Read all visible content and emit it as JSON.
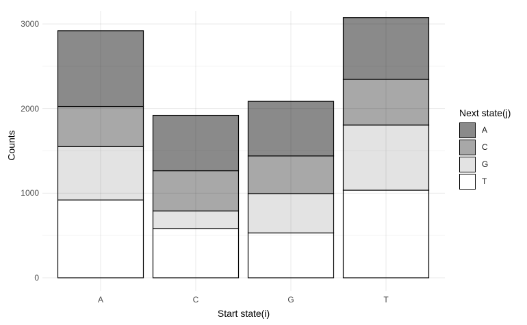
{
  "chart_data": {
    "type": "bar",
    "stacked": true,
    "title": "",
    "xlabel": "Start state(i)",
    "ylabel": "Counts",
    "categories": [
      "A",
      "C",
      "G",
      "T"
    ],
    "series": [
      {
        "name": "A",
        "color": "#8a8a8a",
        "values": [
          895,
          655,
          645,
          730
        ]
      },
      {
        "name": "C",
        "color": "#a8a8a8",
        "values": [
          475,
          475,
          445,
          540
        ]
      },
      {
        "name": "G",
        "color": "#e3e3e3",
        "values": [
          630,
          210,
          465,
          770
        ]
      },
      {
        "name": "T",
        "color": "#ffffff",
        "values": [
          920,
          580,
          530,
          1035
        ]
      }
    ],
    "stack_order_bottom_to_top": [
      "T",
      "G",
      "C",
      "A"
    ],
    "totals": [
      2920,
      1920,
      2085,
      3075
    ],
    "y_ticks": [
      0,
      1000,
      2000,
      3000
    ],
    "y_tick_labels": [
      "0",
      "1000",
      "2000",
      "3000"
    ],
    "y_minor_ticks": [
      500,
      1500,
      2500
    ],
    "ylim": [
      0,
      3230
    ],
    "grid": true,
    "legend_position": "right",
    "bar_outline_color": "#000000"
  },
  "axes": {
    "x_title": "Start state(i)",
    "y_title": "Counts",
    "x_tick_labels": [
      "A",
      "C",
      "G",
      "T"
    ]
  },
  "legend": {
    "title": "Next state(j)",
    "items": [
      {
        "label": "A",
        "color": "#8a8a8a"
      },
      {
        "label": "C",
        "color": "#a8a8a8"
      },
      {
        "label": "G",
        "color": "#e3e3e3"
      },
      {
        "label": "T",
        "color": "#ffffff"
      }
    ]
  },
  "colors": {
    "background": "#ffffff",
    "axis_text": "#4d4d4d",
    "title_text": "#000000",
    "grid_major": "rgba(0,0,0,0.085)",
    "grid_minor": "rgba(0,0,0,0.045)"
  }
}
